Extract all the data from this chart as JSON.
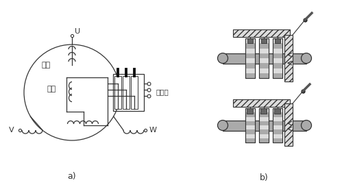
{
  "bg_color": "#ffffff",
  "line_color": "#333333",
  "label_a": "a)",
  "label_b": "b)",
  "label_U": "U",
  "label_V": "V",
  "label_W": "W",
  "label_dingzi": "定子",
  "label_zhuanzi": "转子",
  "label_jidianhuan": "集电环",
  "gray_light": "#dddddd",
  "gray_mid": "#aaaaaa",
  "gray_dark": "#666666",
  "hatch_color": "#888888"
}
